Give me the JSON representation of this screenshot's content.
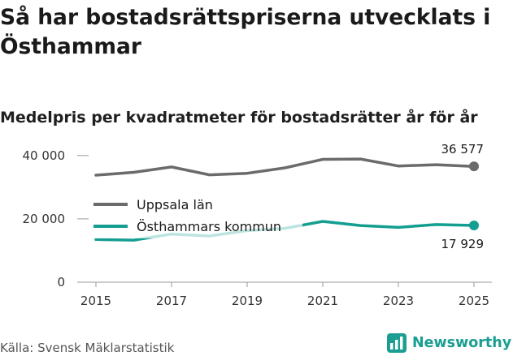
{
  "header": {
    "title": "Så har bostadsrättspriserna utvecklats i Östhammar",
    "subtitle": "Medelpris per kvadratmeter för bostadsrätter år för år"
  },
  "footer": {
    "source": "Källa: Svensk Mäklarstatistik",
    "brand": "Newsworthy"
  },
  "chart_data": {
    "type": "line",
    "x": [
      2015,
      2016,
      2017,
      2018,
      2019,
      2020,
      2021,
      2022,
      2023,
      2024,
      2025
    ],
    "x_ticks": [
      2015,
      2017,
      2019,
      2021,
      2023,
      2025
    ],
    "x_tick_labels": [
      "2015",
      "2017",
      "2019",
      "2021",
      "2023",
      "2025"
    ],
    "ylim": [
      0,
      42000
    ],
    "y_ticks": [
      0,
      20000,
      40000
    ],
    "y_tick_labels": [
      "0",
      "20 000",
      "40 000"
    ],
    "grid": false,
    "legend_position": "middle-left",
    "series": [
      {
        "name": "Uppsala län",
        "color": "#6b6b6d",
        "values": [
          33800,
          34700,
          36400,
          33900,
          34400,
          36100,
          38800,
          38900,
          36700,
          37100,
          36577
        ],
        "end_label": "36 577"
      },
      {
        "name": "Östhammars kommun",
        "color": "#149e91",
        "values": [
          13500,
          13300,
          15200,
          14600,
          16300,
          17000,
          19200,
          17900,
          17300,
          18200,
          17929
        ],
        "end_label": "17 929"
      }
    ]
  }
}
